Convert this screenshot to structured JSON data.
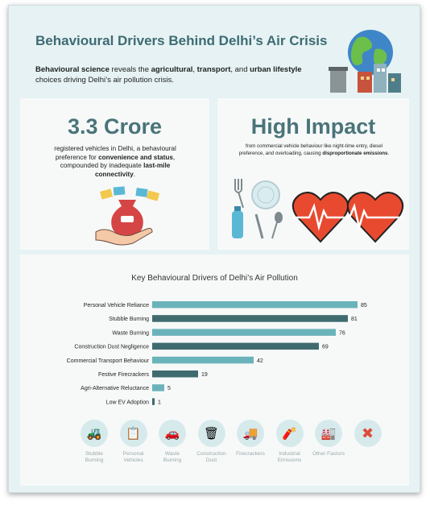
{
  "header": {
    "title": "Behavioural Drivers Behind Delhi’s Air Crisis",
    "subtitle_parts": {
      "a": "Behavioural science",
      "b": " reveals the ",
      "c": "agricultural",
      "d": ", ",
      "e": "transport",
      "f": ", and ",
      "g": "urban lifestyle",
      "h": " choices driving Delhi’s air pollution crisis."
    }
  },
  "left_panel": {
    "headline": "3.3 Crore",
    "text_a": "registered vehicles in Delhi, a behavioural preference for ",
    "text_b": "convenience and status",
    "text_c": ", compounded by inadequate ",
    "text_d": "last-mile connectivity",
    "text_e": "."
  },
  "right_panel": {
    "headline": "High Impact",
    "text_a": "from commercial vehicle behaviour like night-time entry, diesel preference, and overloading, causing ",
    "text_b": "disproportionate emissions",
    "text_c": "."
  },
  "chart_data": {
    "type": "bar",
    "orientation": "horizontal",
    "title": "Key Behavioural Drivers of Delhi’s Air Pollution",
    "categories": [
      "Personal Vehicle Reliance",
      "Stubble Burning",
      "Waste Burning",
      "Construction Dust Negligence",
      "Commercial Transport Behaviour",
      "Festive Firecrackers",
      "Agri-Alternative Reluctance",
      "Low EV Adoption"
    ],
    "values": [
      85,
      81,
      76,
      69,
      42,
      19,
      5,
      1
    ],
    "colors": [
      "#6bb3ba",
      "#3f6b70",
      "#6bb3ba",
      "#3f6b70",
      "#6bb3ba",
      "#3f6b70",
      "#6bb3ba",
      "#3f6b70"
    ],
    "xticks": [
      20,
      40,
      60,
      80
    ],
    "xlim": [
      0,
      90
    ],
    "grid": false,
    "legend": "none"
  },
  "icons": [
    {
      "label": "Stubble Burning",
      "icon": "tractor-icon",
      "glyph": "🚜"
    },
    {
      "label": "Personal Vehicles",
      "icon": "notepad-icon",
      "glyph": "📋"
    },
    {
      "label": "Waste Burning",
      "icon": "car-icon",
      "glyph": "🚗"
    },
    {
      "label": "Construction Dust",
      "icon": "trash-can-icon",
      "glyph": "🗑"
    },
    {
      "label": "Firecrackers",
      "icon": "truck-icon",
      "glyph": "🚚"
    },
    {
      "label": "Industrial Emissions",
      "icon": "firecracker-icon",
      "glyph": "🧨"
    },
    {
      "label": "Other Factors",
      "icon": "factory-icon",
      "glyph": "🏭"
    },
    {
      "label": "",
      "icon": "close-x-icon",
      "glyph": "✖"
    }
  ],
  "colors": {
    "background": "#e6f2f3",
    "title": "#3d6b73",
    "bar_light": "#6bb3ba",
    "bar_dark": "#3f6b70"
  }
}
